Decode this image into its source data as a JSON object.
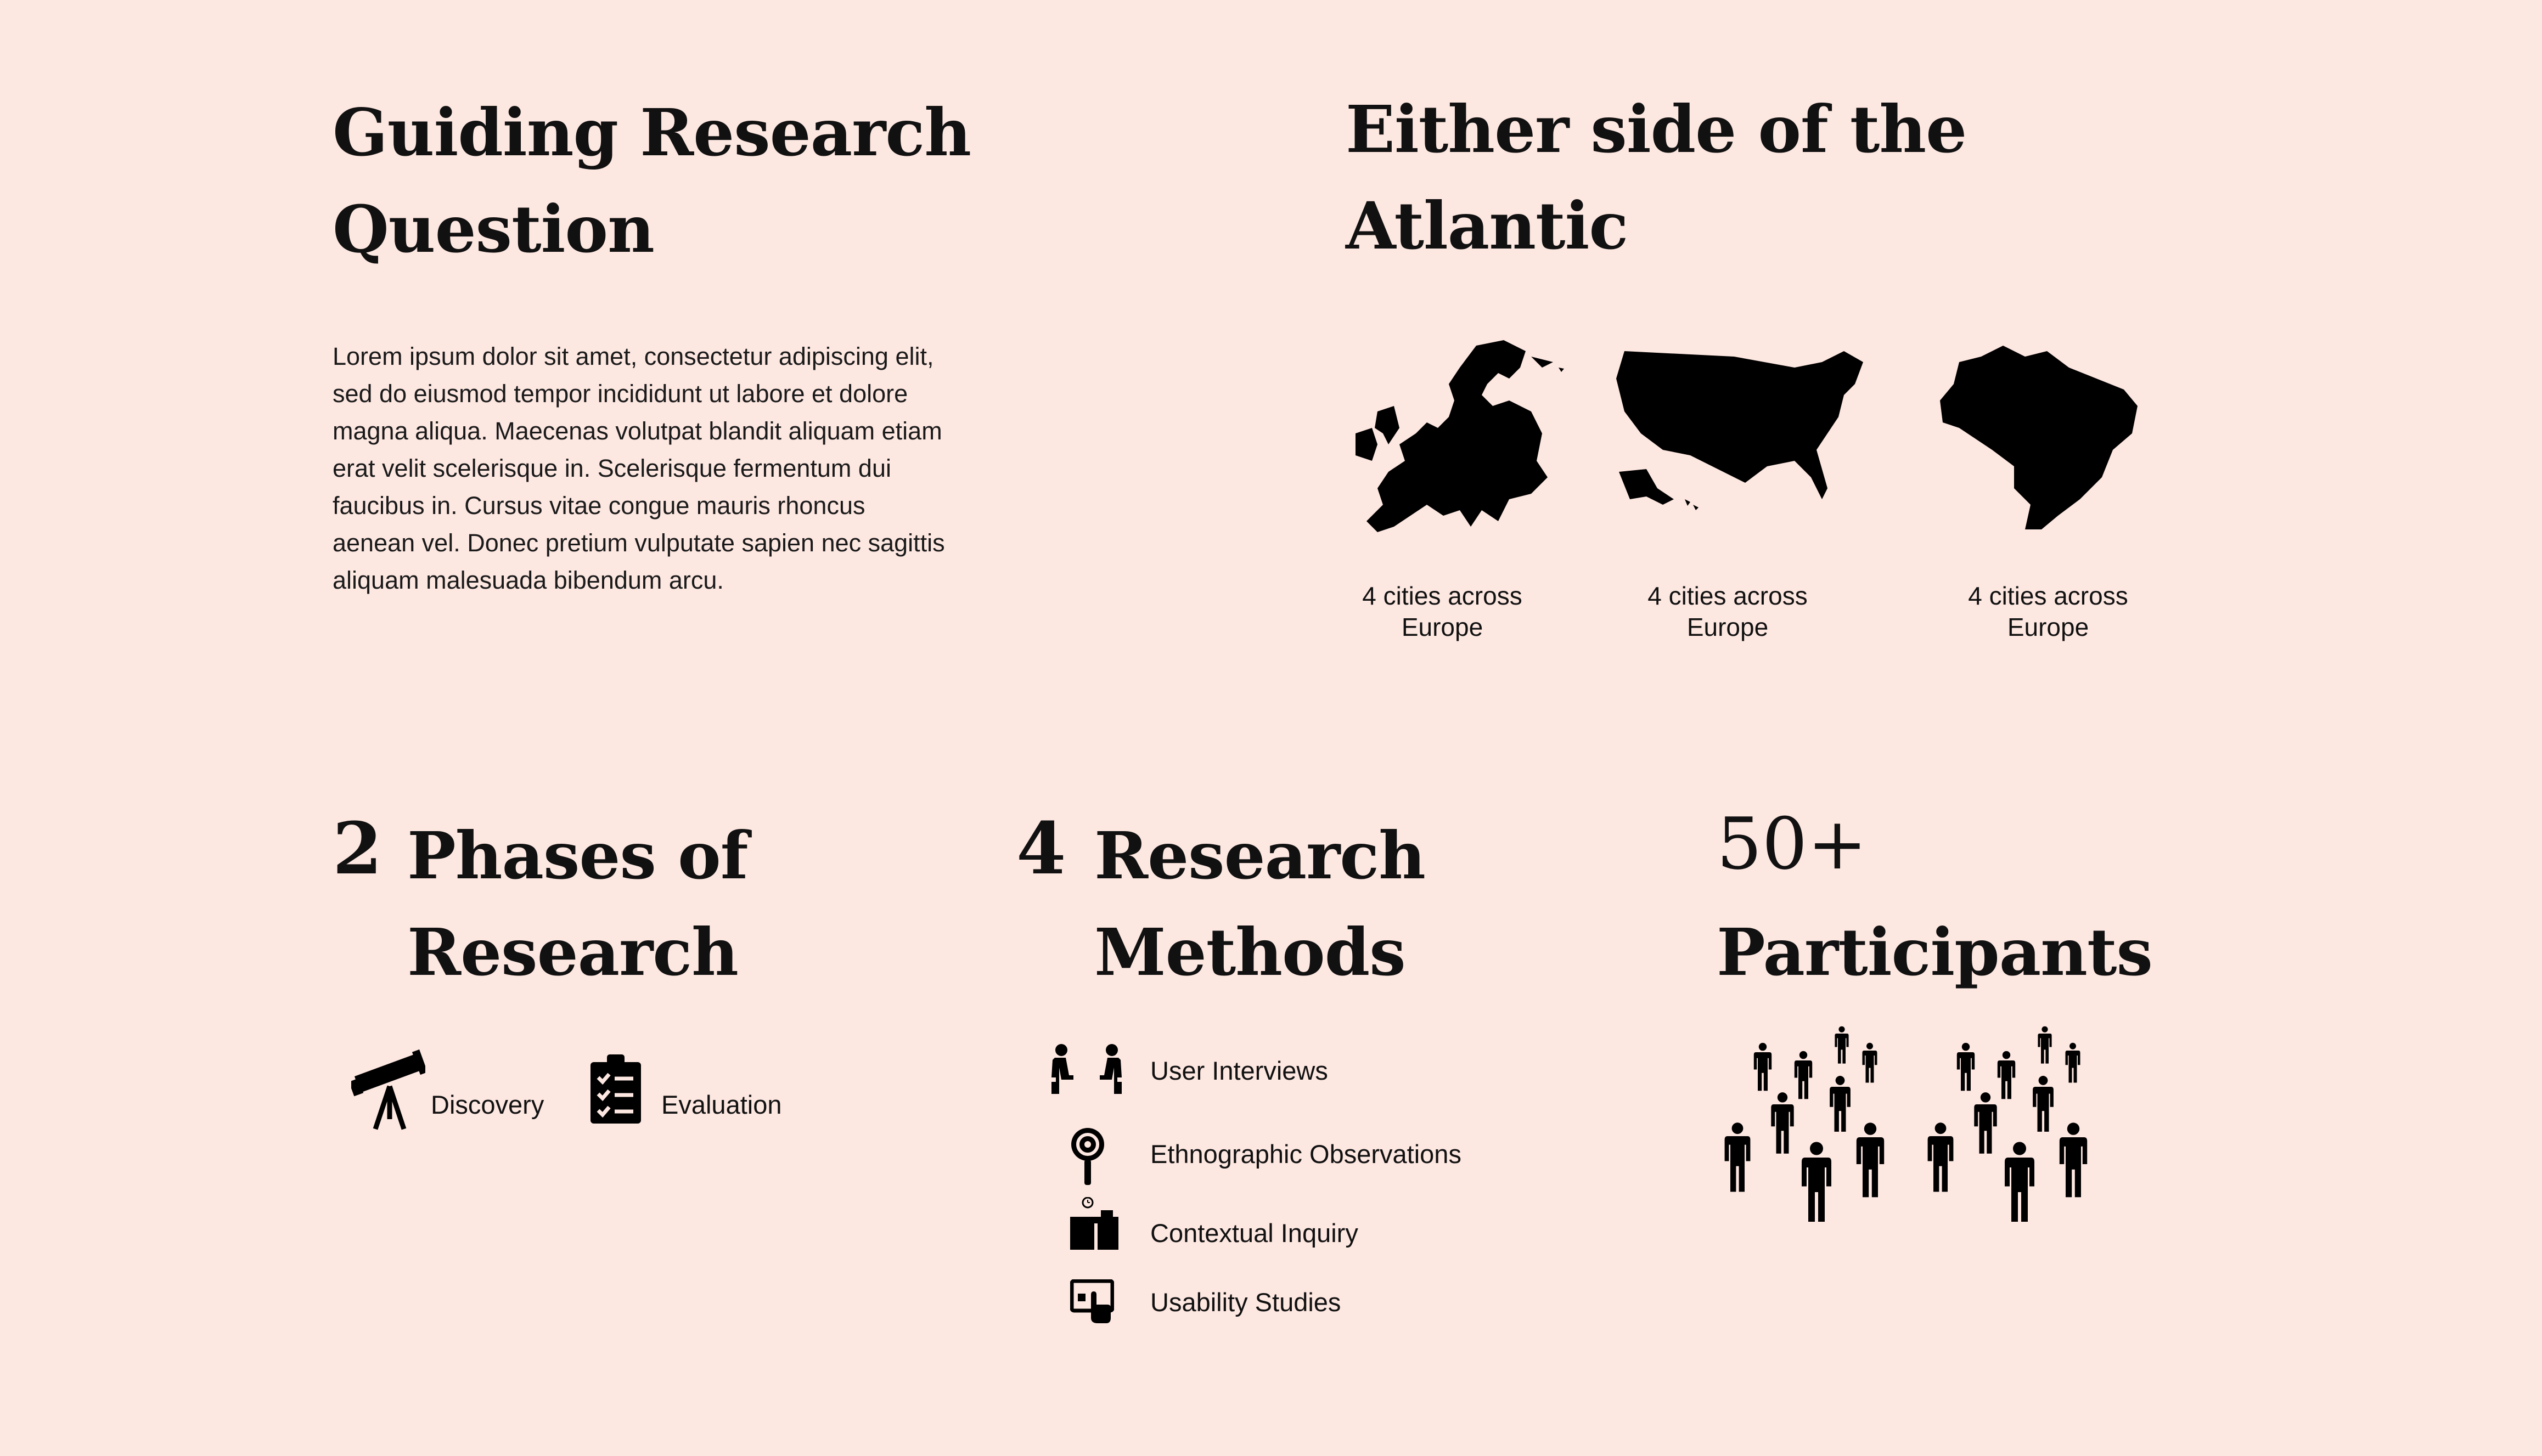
{
  "guiding": {
    "title_line1": "Guiding Research",
    "title_line2": "Question",
    "body": "Lorem ipsum dolor sit amet, consectetur adipiscing elit, sed do eiusmod tempor incididunt ut labore et dolore magna aliqua. Maecenas volutpat blandit aliquam etiam erat velit scelerisque in. Scelerisque fermentum dui faucibus in. Cursus vitae congue mauris rhoncus aenean vel. Donec pretium vulputate sapien nec sagittis aliquam malesuada bibendum arcu."
  },
  "atlantic": {
    "title_line1": "Either side of the",
    "title_line2": "Atlantic",
    "maps": [
      {
        "icon": "europe-map-icon",
        "caption_line1": "4 cities across",
        "caption_line2": "Europe"
      },
      {
        "icon": "usa-map-icon",
        "caption_line1": "4 cities across",
        "caption_line2": "Europe"
      },
      {
        "icon": "brazil-map-icon",
        "caption_line1": "4 cities across",
        "caption_line2": "Europe"
      }
    ]
  },
  "phases": {
    "number": "2",
    "title_line1": "Phases of",
    "title_line2": "Research",
    "items": [
      {
        "icon": "telescope-icon",
        "label": "Discovery"
      },
      {
        "icon": "clipboard-checklist-icon",
        "label": "Evaluation"
      }
    ]
  },
  "methods": {
    "number": "4",
    "title_line1": "Research",
    "title_line2": "Methods",
    "items": [
      {
        "icon": "interview-icon",
        "label": "User Interviews"
      },
      {
        "icon": "magnifier-icon",
        "label": "Ethnographic Observations"
      },
      {
        "icon": "desk-icon",
        "label": "Contextual Inquiry"
      },
      {
        "icon": "usability-screen-icon",
        "label": "Usability Studies"
      }
    ]
  },
  "participants": {
    "number": "50+",
    "title": "Participants",
    "icon": "people-crowd-icon"
  },
  "colors": {
    "background": "#fde7e1",
    "text": "#111111"
  }
}
